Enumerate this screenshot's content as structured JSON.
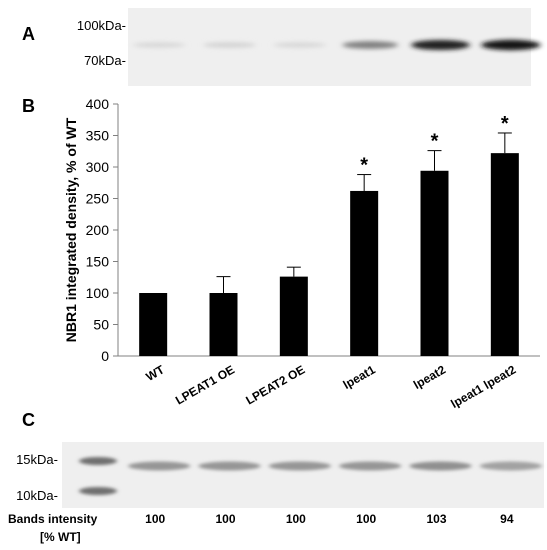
{
  "panels": {
    "a_label": "A",
    "b_label": "B",
    "c_label": "C"
  },
  "blot_a": {
    "markers": [
      "100kDa-",
      "70kDa-"
    ],
    "band_darkness": [
      0.08,
      0.1,
      0.08,
      0.45,
      0.85,
      0.9
    ]
  },
  "chart_data": {
    "type": "bar",
    "categories": [
      "WT",
      "LPEAT1 OE",
      "LPEAT2 OE",
      "lpeat1",
      "lpeat2",
      "lpeat1 lpeat2"
    ],
    "values": [
      100,
      100,
      126,
      262,
      294,
      322
    ],
    "errors": [
      0,
      26,
      15,
      26,
      32,
      32
    ],
    "significance": [
      "",
      "",
      "",
      "*",
      "*",
      "*"
    ],
    "ylabel": "NBR1 integrated density, % of WT",
    "xlabel": "",
    "ylim": [
      0,
      400
    ],
    "yticks": [
      "0",
      "50",
      "100",
      "150",
      "200",
      "250",
      "300",
      "350",
      "400"
    ],
    "bar_color": "#000000",
    "grid": false
  },
  "blot_c": {
    "markers": [
      "15kDa-",
      "10kDa-"
    ],
    "bands_label_line1": "Bands intensity",
    "bands_label_line2": "[% WT]",
    "band_intensities": [
      "100",
      "100",
      "100",
      "100",
      "103",
      "94"
    ]
  }
}
